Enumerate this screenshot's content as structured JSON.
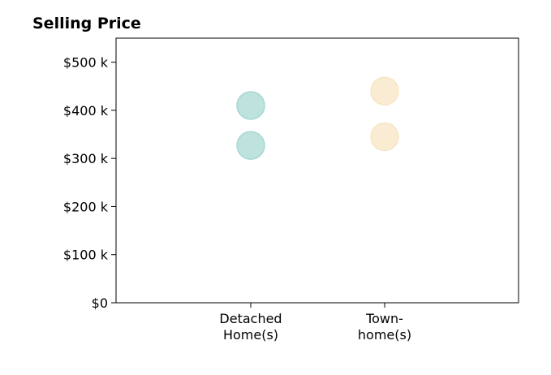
{
  "chart_data": {
    "type": "scatter",
    "title": "Selling Price",
    "xlabel": "",
    "ylabel": "",
    "categories": [
      [
        "Detached",
        "Home(s)"
      ],
      [
        "Town-",
        "home(s)"
      ]
    ],
    "series": [
      {
        "category_index": 0,
        "values": [
          410000,
          327000
        ],
        "color": "#a8d8d3"
      },
      {
        "category_index": 1,
        "values": [
          440000,
          345000
        ],
        "color": "#f7e6c4"
      }
    ],
    "ylim": [
      0,
      550000
    ],
    "yticks": [
      0,
      100000,
      200000,
      300000,
      400000,
      500000
    ],
    "ytick_labels": [
      "$0",
      "$100 k",
      "$200 k",
      "$300 k",
      "$400 k",
      "$500 k"
    ],
    "grid": false,
    "legend": "none"
  }
}
